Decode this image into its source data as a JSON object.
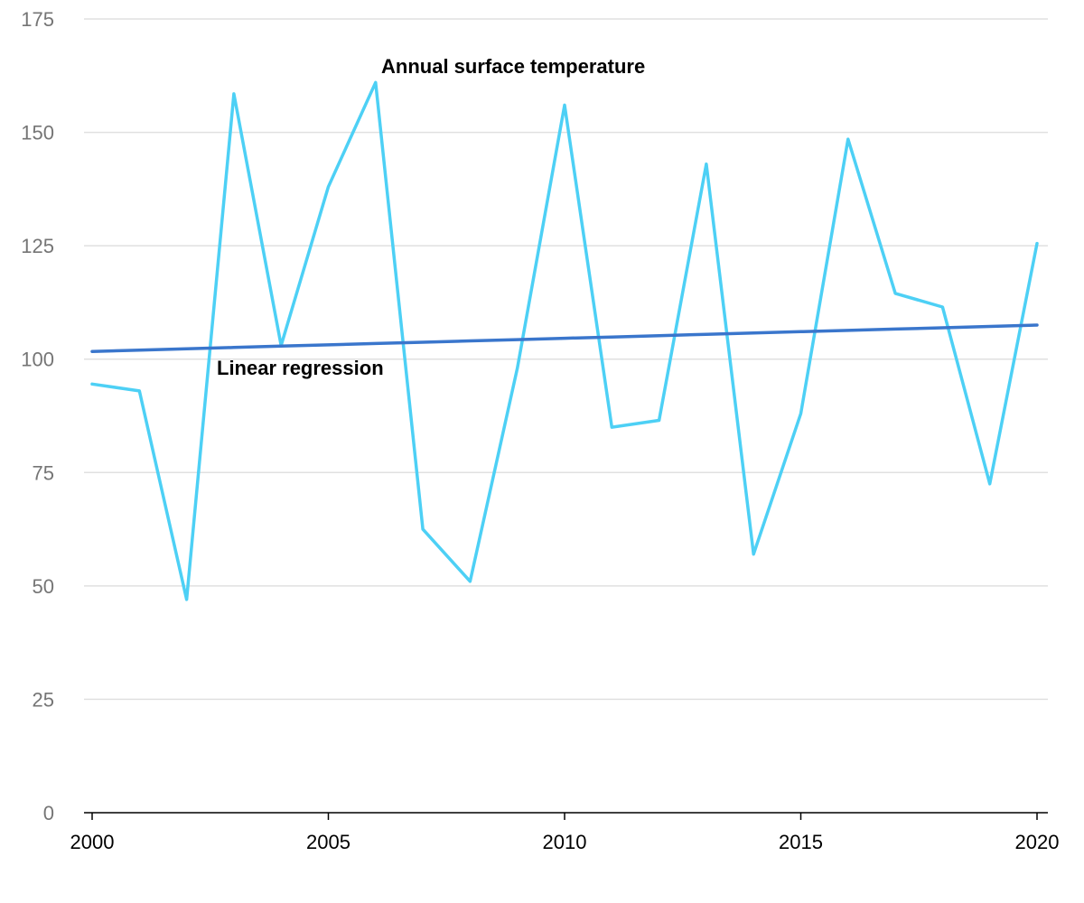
{
  "chart_data": {
    "type": "line",
    "x": [
      2000,
      2001,
      2002,
      2003,
      2004,
      2005,
      2006,
      2007,
      2008,
      2009,
      2010,
      2011,
      2012,
      2013,
      2014,
      2015,
      2016,
      2017,
      2018,
      2019,
      2020
    ],
    "series": [
      {
        "name": "Annual surface temperature",
        "color": "#4dd0f5",
        "values": [
          94.5,
          93,
          47,
          158.5,
          103,
          138,
          161,
          62.5,
          51,
          98,
          156,
          85,
          86.5,
          143,
          57,
          88,
          148.5,
          114.5,
          111.5,
          72.5,
          125.5
        ]
      },
      {
        "name": "Linear regression",
        "color": "#3a76cc",
        "values": [
          101.7,
          101.99,
          102.28,
          102.57,
          102.86,
          103.15,
          103.44,
          103.73,
          104.02,
          104.31,
          104.6,
          104.89,
          105.18,
          105.47,
          105.76,
          106.05,
          106.34,
          106.63,
          106.92,
          107.21,
          107.5
        ]
      }
    ],
    "title": "",
    "xlabel": "",
    "ylabel": "",
    "ylim": [
      0,
      175
    ],
    "xlim": [
      2000,
      2020
    ],
    "yticks": [
      0,
      25,
      50,
      75,
      100,
      125,
      150,
      175
    ],
    "xticks": [
      2000,
      2005,
      2010,
      2015,
      2020
    ],
    "grid": "horizontal",
    "legend": "none (series labeled inline)"
  }
}
